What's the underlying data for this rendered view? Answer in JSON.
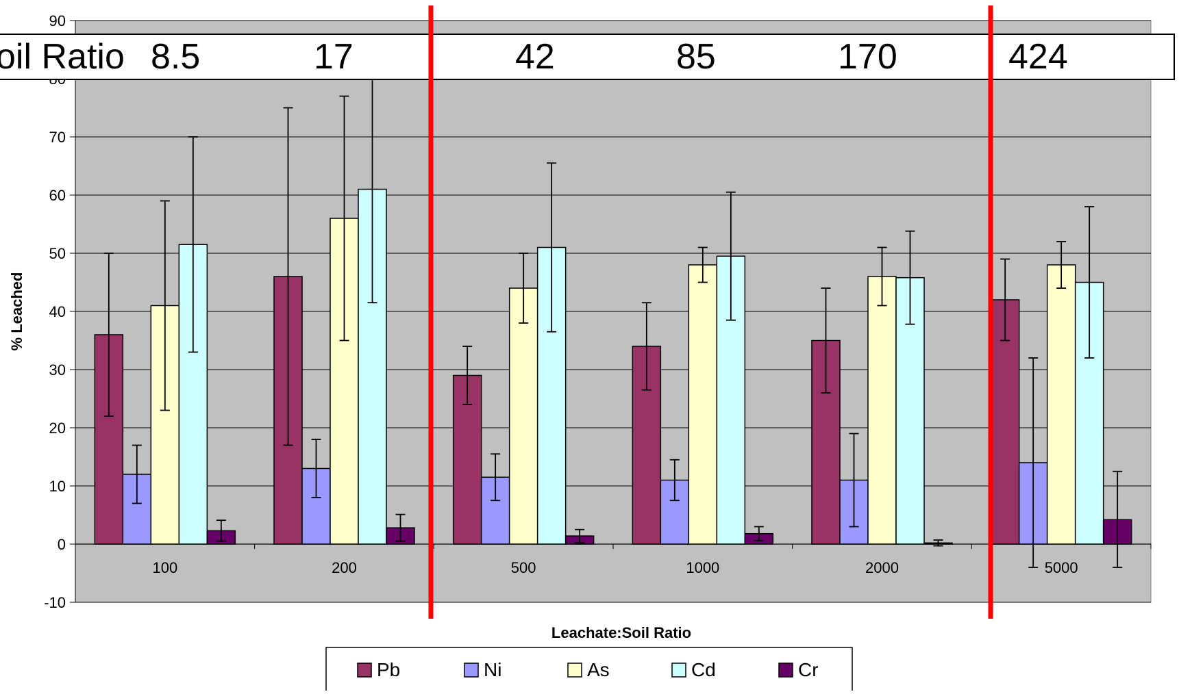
{
  "chart_data": {
    "type": "bar",
    "xlabel": "Leachate:Soil Ratio",
    "ylabel": "% Leached",
    "categories": [
      "100",
      "200",
      "500",
      "1000",
      "2000",
      "5000"
    ],
    "ylim": [
      -10,
      90
    ],
    "yticks": [
      -10,
      0,
      10,
      20,
      30,
      40,
      50,
      60,
      70,
      80,
      90
    ],
    "grid": true,
    "legend_position": "bottom",
    "series": [
      {
        "name": "Pb",
        "color": "#993366",
        "values": [
          36,
          46,
          29,
          34,
          35,
          42
        ],
        "err_low": [
          22,
          17,
          24,
          26.5,
          26,
          35
        ],
        "err_high": [
          50,
          75,
          34,
          41.5,
          44,
          49
        ]
      },
      {
        "name": "Ni",
        "color": "#9999FF",
        "values": [
          12,
          13,
          11.5,
          11,
          11,
          14
        ],
        "err_low": [
          7,
          8,
          7.5,
          7.5,
          3,
          -4
        ],
        "err_high": [
          17,
          18,
          15.5,
          14.5,
          19,
          32
        ]
      },
      {
        "name": "As",
        "color": "#FFFFCC",
        "values": [
          41,
          56,
          44,
          48,
          46,
          48
        ],
        "err_low": [
          23,
          35,
          38,
          45,
          41,
          44
        ],
        "err_high": [
          59,
          77,
          50,
          51,
          51,
          52
        ]
      },
      {
        "name": "Cd",
        "color": "#CCFFFF",
        "values": [
          51.5,
          61,
          51,
          49.5,
          45.8,
          45
        ],
        "err_low": [
          33,
          41.5,
          36.5,
          38.5,
          37.8,
          32
        ],
        "err_high": [
          70,
          81,
          65.5,
          60.5,
          53.8,
          58
        ]
      },
      {
        "name": "Cr",
        "color": "#660066",
        "values": [
          2.3,
          2.8,
          1.4,
          1.8,
          0.2,
          4.2
        ],
        "err_low": [
          0.5,
          0.5,
          0.2,
          0.6,
          -0.3,
          -4
        ],
        "err_high": [
          4.1,
          5.1,
          2.5,
          3,
          0.7,
          12.5
        ]
      }
    ],
    "overlay_ratio_labels": [
      "oil Ratio",
      "8.5",
      "17",
      "42",
      "85",
      "170",
      "424"
    ],
    "colors": {
      "plot_bg": "#C0C0C0",
      "divider": "#FF0000",
      "gridline": "#000000"
    }
  }
}
